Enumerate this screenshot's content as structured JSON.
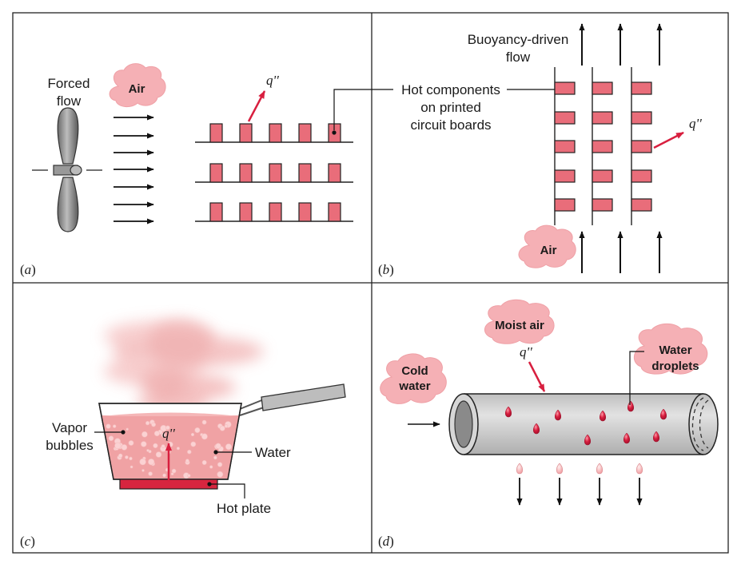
{
  "panels": {
    "a": {
      "tag": "a",
      "forced_flow": [
        "Forced",
        "flow"
      ],
      "air": "Air",
      "flux": "q''"
    },
    "b": {
      "tag": "b",
      "buoyancy": [
        "Buoyancy-driven",
        "flow"
      ],
      "components": [
        "Hot components",
        "on printed",
        "circuit boards"
      ],
      "air": "Air",
      "flux": "q''"
    },
    "c": {
      "tag": "c",
      "vapor": [
        "Vapor",
        "bubbles"
      ],
      "water": "Water",
      "hot_plate": "Hot plate",
      "flux": "q''"
    },
    "d": {
      "tag": "d",
      "moist_air": "Moist air",
      "cold_water": [
        "Cold",
        "water"
      ],
      "droplets": [
        "Water",
        "droplets"
      ],
      "flux": "q''"
    }
  },
  "colors": {
    "component": "#e96d7a",
    "arrow_red": "#d81f3f",
    "cloud": "#f5b0b5",
    "water": "#f0a2a4",
    "hot_plate": "#d7253f",
    "droplet": "#d81f3f",
    "pipe": "#cdcdcd",
    "steam": "#f6c6c6"
  }
}
